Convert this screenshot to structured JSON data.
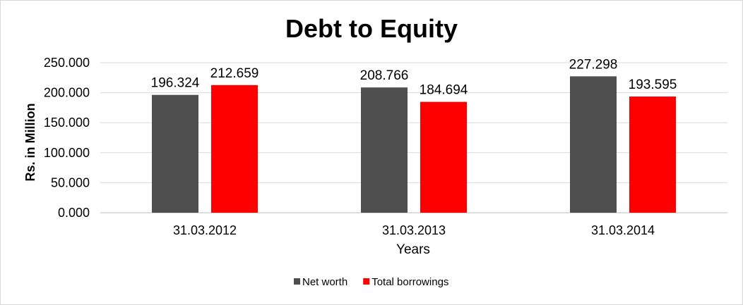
{
  "chart_data": {
    "type": "bar",
    "title": "Debt to Equity",
    "xlabel": "Years",
    "ylabel": "Rs. in Million",
    "categories": [
      "31.03.2012",
      "31.03.2013",
      "31.03.2014"
    ],
    "series": [
      {
        "name": "Net worth",
        "color": "#4f4f4f",
        "values": [
          196.324,
          208.766,
          227.298
        ],
        "labels": [
          "196.324",
          "208.766",
          "227.298"
        ]
      },
      {
        "name": "Total borrowings",
        "color": "#ff0000",
        "values": [
          212.659,
          184.694,
          193.595
        ],
        "labels": [
          "212.659",
          "184.694",
          "193.595"
        ]
      }
    ],
    "ylim": [
      0,
      250
    ],
    "yticks": [
      "0.000",
      "50.000",
      "100.000",
      "150.000",
      "200.000",
      "250.000"
    ],
    "grid": true,
    "legend_position": "bottom"
  }
}
